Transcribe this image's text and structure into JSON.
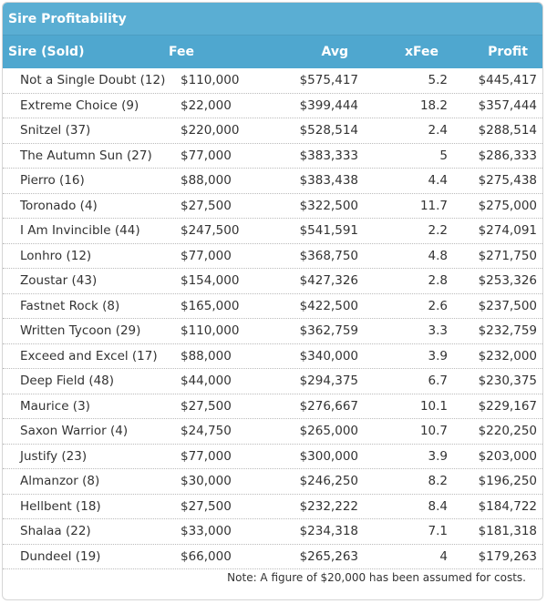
{
  "header": {
    "title": "Sire Profitability"
  },
  "table": {
    "columns": [
      "Sire (Sold)",
      "Fee",
      "Avg",
      "xFee",
      "Profit"
    ],
    "rows": [
      [
        "Not a Single Doubt (12)",
        "$110,000",
        "$575,417",
        "5.2",
        "$445,417"
      ],
      [
        "Extreme Choice (9)",
        "$22,000",
        "$399,444",
        "18.2",
        "$357,444"
      ],
      [
        "Snitzel (37)",
        "$220,000",
        "$528,514",
        "2.4",
        "$288,514"
      ],
      [
        "The Autumn Sun (27)",
        "$77,000",
        "$383,333",
        "5",
        "$286,333"
      ],
      [
        "Pierro (16)",
        "$88,000",
        "$383,438",
        "4.4",
        "$275,438"
      ],
      [
        "Toronado (4)",
        "$27,500",
        "$322,500",
        "11.7",
        "$275,000"
      ],
      [
        "I Am Invincible (44)",
        "$247,500",
        "$541,591",
        "2.2",
        "$274,091"
      ],
      [
        "Lonhro (12)",
        "$77,000",
        "$368,750",
        "4.8",
        "$271,750"
      ],
      [
        "Zoustar (43)",
        "$154,000",
        "$427,326",
        "2.8",
        "$253,326"
      ],
      [
        "Fastnet Rock (8)",
        "$165,000",
        "$422,500",
        "2.6",
        "$237,500"
      ],
      [
        "Written Tycoon (29)",
        "$110,000",
        "$362,759",
        "3.3",
        "$232,759"
      ],
      [
        "Exceed and Excel (17)",
        "$88,000",
        "$340,000",
        "3.9",
        "$232,000"
      ],
      [
        "Deep Field (48)",
        "$44,000",
        "$294,375",
        "6.7",
        "$230,375"
      ],
      [
        "Maurice (3)",
        "$27,500",
        "$276,667",
        "10.1",
        "$229,167"
      ],
      [
        "Saxon Warrior (4)",
        "$24,750",
        "$265,000",
        "10.7",
        "$220,250"
      ],
      [
        "Justify (23)",
        "$77,000",
        "$300,000",
        "3.9",
        "$203,000"
      ],
      [
        "Almanzor (8)",
        "$30,000",
        "$246,250",
        "8.2",
        "$196,250"
      ],
      [
        "Hellbent (18)",
        "$27,500",
        "$232,222",
        "8.4",
        "$184,722"
      ],
      [
        "Shalaa (22)",
        "$33,000",
        "$234,318",
        "7.1",
        "$181,318"
      ],
      [
        "Dundeel (19)",
        "$66,000",
        "$265,263",
        "4",
        "$179,263"
      ]
    ]
  },
  "note": "Note: A figure of $20,000 has been assumed for costs."
}
